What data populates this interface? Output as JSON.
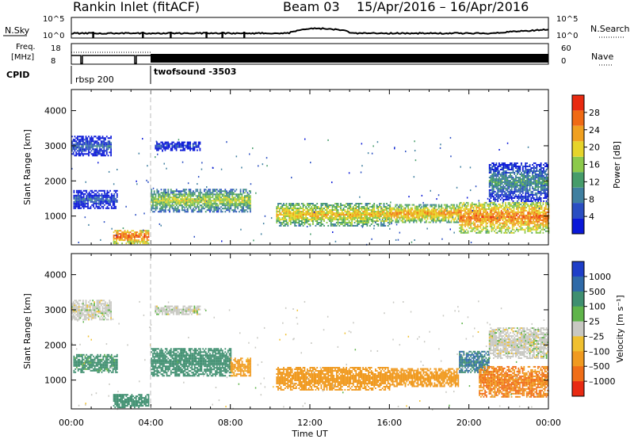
{
  "header": {
    "station": "Rankin Inlet (fitACF)",
    "beam": "Beam 03",
    "date_range": "15/Apr/2016 – 16/Apr/2016"
  },
  "aux_panels": {
    "nsky_label": "N.Sky",
    "nsky_ticks": [
      "10^5",
      "10^0"
    ],
    "nsearch_label": "N.Search",
    "nsearch_ticks": [
      "10^5",
      "10^0"
    ],
    "freq_label_1": "Freq.",
    "freq_label_2": "[MHz]",
    "freq_ticks": [
      "18",
      "8"
    ],
    "nave_label": "Nave",
    "nave_ticks": [
      "60",
      "0"
    ],
    "cpid_label": "CPID",
    "cpid_programs": [
      {
        "name": "rbsp 200",
        "start_hour": 0
      },
      {
        "name": "twofsound -3503",
        "start_hour": 3.9
      }
    ]
  },
  "chart_data": [
    {
      "type": "heatmap",
      "name": "Power",
      "ylabel": "Slant Range [km]",
      "xlabel": "",
      "x_range_hours": [
        0,
        24
      ],
      "ylim": [
        180,
        4600
      ],
      "y_ticks": [
        "1000",
        "2000",
        "3000",
        "4000"
      ],
      "colorbar_label": "Power [dB]",
      "colorbar_ticks": [
        "4",
        "8",
        "12",
        "16",
        "20",
        "24",
        "28"
      ],
      "colorbar_range": [
        0,
        32
      ],
      "colorbar_colors": [
        "#0a18d8",
        "#2a4ec2",
        "#3f7fa0",
        "#469c6a",
        "#8cc94b",
        "#e6d42a",
        "#f0a020",
        "#f06a14",
        "#e82a10"
      ],
      "echo_regions": [
        {
          "t": [
            0.0,
            2.0
          ],
          "r": [
            2700,
            3250
          ],
          "level": 8
        },
        {
          "t": [
            0.1,
            2.3
          ],
          "r": [
            1200,
            1700
          ],
          "level": 8
        },
        {
          "t": [
            2.1,
            3.9
          ],
          "r": [
            200,
            600
          ],
          "level": 28
        },
        {
          "t": [
            4.0,
            9.0
          ],
          "r": [
            1100,
            1750
          ],
          "level": 18
        },
        {
          "t": [
            4.2,
            6.5
          ],
          "r": [
            2850,
            3100
          ],
          "level": 6
        },
        {
          "t": [
            10.3,
            16.0
          ],
          "r": [
            700,
            1350
          ],
          "level": 22
        },
        {
          "t": [
            16.0,
            19.5
          ],
          "r": [
            800,
            1300
          ],
          "level": 24
        },
        {
          "t": [
            19.5,
            24.0
          ],
          "r": [
            500,
            1400
          ],
          "level": 26
        },
        {
          "t": [
            21.0,
            24.0
          ],
          "r": [
            1400,
            2500
          ],
          "level": 12
        }
      ]
    },
    {
      "type": "heatmap",
      "name": "Velocity",
      "ylabel": "Slant Range [km]",
      "xlabel": "Time UT",
      "x_range_hours": [
        0,
        24
      ],
      "x_ticks": [
        "00:00",
        "04:00",
        "08:00",
        "12:00",
        "16:00",
        "20:00",
        "00:00"
      ],
      "ylim": [
        180,
        4600
      ],
      "y_ticks": [
        "1000",
        "2000",
        "3000",
        "4000"
      ],
      "colorbar_label": "Velocity [m s⁻¹]",
      "colorbar_ticks": [
        "1000",
        "500",
        "100",
        "25",
        "–25",
        "–100",
        "–500",
        "–1000"
      ],
      "colorbar_colors": [
        "#1e3ec8",
        "#2f6aa8",
        "#3f8f70",
        "#5fb44a",
        "#c8c8c2",
        "#f0c030",
        "#f09a20",
        "#f06e18",
        "#e82a12"
      ],
      "echo_regions": [
        {
          "t": [
            0.0,
            2.0
          ],
          "r": [
            2700,
            3250
          ],
          "velocity": 0
        },
        {
          "t": [
            0.1,
            2.3
          ],
          "r": [
            1200,
            1700
          ],
          "velocity": 150
        },
        {
          "t": [
            2.1,
            3.9
          ],
          "r": [
            200,
            600
          ],
          "velocity": 200
        },
        {
          "t": [
            4.0,
            8.0
          ],
          "r": [
            1100,
            1900
          ],
          "velocity": 300
        },
        {
          "t": [
            8.0,
            9.0
          ],
          "r": [
            1100,
            1600
          ],
          "velocity": -150
        },
        {
          "t": [
            4.2,
            6.5
          ],
          "r": [
            2850,
            3100
          ],
          "velocity": 0
        },
        {
          "t": [
            10.3,
            16.0
          ],
          "r": [
            700,
            1350
          ],
          "velocity": -300
        },
        {
          "t": [
            16.0,
            19.5
          ],
          "r": [
            800,
            1300
          ],
          "velocity": -200
        },
        {
          "t": [
            19.5,
            21.0
          ],
          "r": [
            1200,
            1800
          ],
          "velocity": 500
        },
        {
          "t": [
            20.5,
            24.0
          ],
          "r": [
            500,
            1400
          ],
          "velocity": -500
        },
        {
          "t": [
            21.0,
            24.0
          ],
          "r": [
            1600,
            2500
          ],
          "velocity": 0
        }
      ]
    }
  ]
}
